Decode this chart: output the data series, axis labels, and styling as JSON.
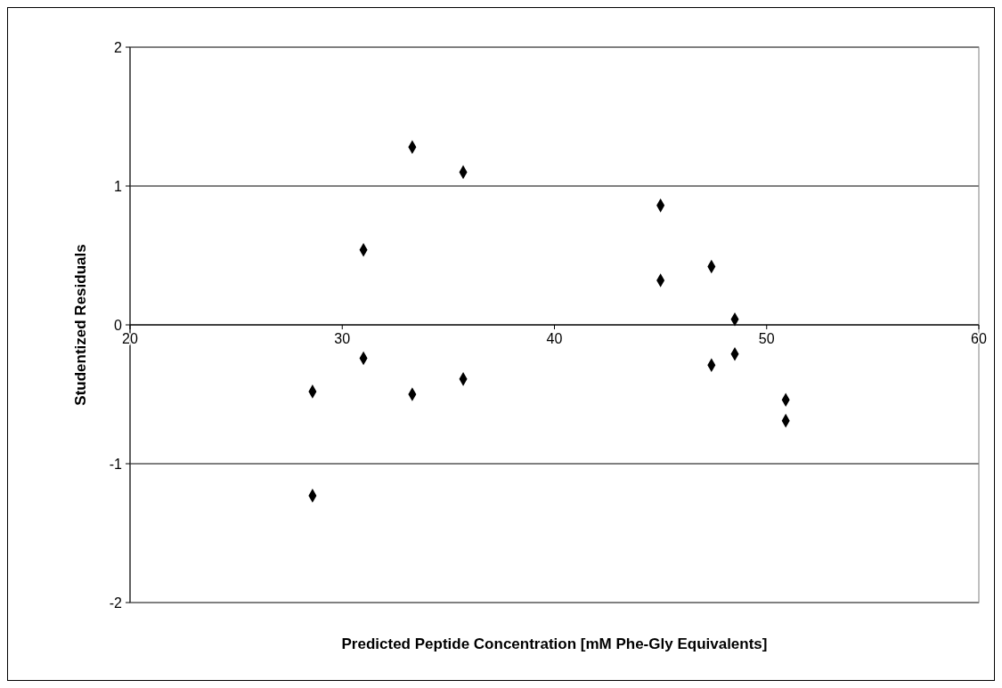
{
  "chart_data": {
    "type": "scatter",
    "xlabel": "Predicted Peptide Concentration [mM Phe-Gly Equivalents]",
    "ylabel": "Studentized Residuals",
    "x": [
      28.6,
      28.6,
      31.0,
      31.0,
      33.3,
      33.3,
      35.7,
      35.7,
      45.0,
      45.0,
      47.4,
      47.4,
      48.5,
      48.5,
      50.9,
      50.9
    ],
    "series": [
      {
        "color": "#000000",
        "values": [
          -0.48,
          -1.23,
          0.54,
          -0.24,
          1.28,
          -0.5,
          1.1,
          -0.39,
          0.86,
          0.32,
          0.42,
          -0.29,
          0.04,
          -0.21,
          -0.54,
          -0.69
        ]
      }
    ],
    "xlim": [
      20,
      60
    ],
    "xticks": [
      20,
      30,
      40,
      50,
      60
    ],
    "ylim": [
      -2,
      2
    ],
    "yticks": [
      -2,
      -1,
      0,
      1,
      2
    ],
    "grid": "y",
    "marker": "diamond"
  }
}
